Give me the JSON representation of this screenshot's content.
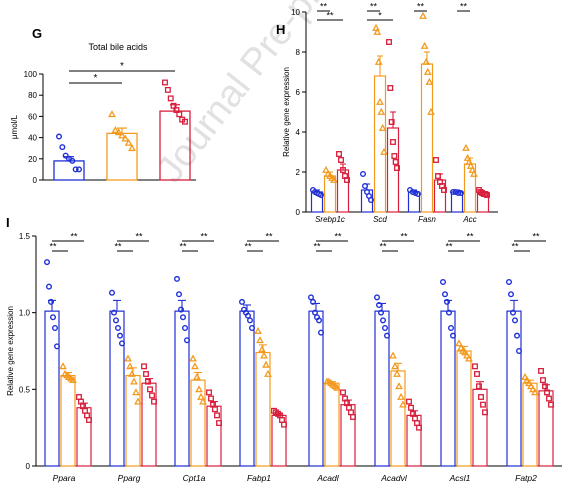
{
  "watermark": "Journal Pre-proof",
  "colors": {
    "control": "#1f2fd6",
    "group2": "#f39a1e",
    "group3": "#d81e3c"
  },
  "chart_data": [
    {
      "id": "G",
      "panel_label": "G",
      "type": "bar",
      "title": "Total bile acids",
      "ylabel": "μmol/L",
      "ylim": [
        0,
        100
      ],
      "yticks": [
        0,
        20,
        40,
        60,
        80,
        100
      ],
      "series": [
        {
          "mean": 18,
          "err": 4,
          "points": [
            41,
            31,
            23,
            20,
            18,
            10,
            10
          ]
        },
        {
          "mean": 44,
          "err": 5,
          "points": [
            62,
            47,
            45,
            42,
            39,
            35,
            30
          ]
        },
        {
          "mean": 65,
          "err": 6,
          "points": [
            92,
            85,
            77,
            70,
            66,
            62,
            57,
            55
          ]
        }
      ],
      "significance": [
        {
          "from": 0,
          "to": 1,
          "label": "*"
        },
        {
          "from": 0,
          "to": 2,
          "label": "*"
        }
      ]
    },
    {
      "id": "H",
      "panel_label": "H",
      "type": "bar",
      "ylabel": "Relative gene expression",
      "ylim": [
        0,
        10
      ],
      "yticks": [
        0,
        2,
        4,
        6,
        8,
        10
      ],
      "categories": [
        "Srebp1c",
        "Scd",
        "Fasn",
        "Acc"
      ],
      "groups": [
        {
          "means": [
            1.0,
            1.1,
            1.0,
            1.0
          ],
          "errs": [
            0.1,
            0.3,
            0.1,
            0.1
          ],
          "points": [
            [
              1.1,
              1.0,
              0.95,
              0.9,
              0.85
            ],
            [
              1.9,
              1.3,
              1.0,
              0.8,
              0.6
            ],
            [
              1.1,
              1.0,
              0.95,
              0.9
            ],
            [
              1.0,
              1.0,
              0.95,
              0.95
            ]
          ]
        },
        {
          "means": [
            1.8,
            6.8,
            7.4,
            2.4
          ],
          "errs": [
            0.2,
            1.0,
            0.6,
            0.3
          ],
          "points": [
            [
              2.1,
              1.9,
              1.8,
              1.7,
              1.6
            ],
            [
              9.2,
              9.0,
              7.5,
              5.5,
              5.0,
              4.2,
              3.0
            ],
            [
              9.8,
              8.3,
              7.5,
              7.0,
              6.5,
              5.0
            ],
            [
              3.2,
              2.7,
              2.5,
              2.3,
              2.1,
              1.9
            ]
          ]
        },
        {
          "means": [
            2.1,
            4.2,
            1.6,
            0.95
          ],
          "errs": [
            0.3,
            0.8,
            0.3,
            0.05
          ],
          "points": [
            [
              2.9,
              2.6,
              2.1,
              1.8,
              1.6
            ],
            [
              8.5,
              6.2,
              4.5,
              3.5,
              2.8,
              2.5,
              2.2
            ],
            [
              2.6,
              1.8,
              1.5,
              1.3,
              1.1
            ],
            [
              1.1,
              1.0,
              0.95,
              0.9,
              0.9,
              0.85
            ]
          ]
        }
      ],
      "significance": [
        {
          "cat": 0,
          "from": 0,
          "to": 1,
          "label": "**"
        },
        {
          "cat": 0,
          "from": 0,
          "to": 2,
          "label": "**"
        },
        {
          "cat": 1,
          "from": 0,
          "to": 1,
          "label": "**"
        },
        {
          "cat": 1,
          "from": 0,
          "to": 2,
          "label": "*"
        },
        {
          "cat": 2,
          "from": 0,
          "to": 1,
          "label": "**"
        },
        {
          "cat": 3,
          "from": 0,
          "to": 1,
          "label": "**"
        }
      ]
    },
    {
      "id": "I",
      "panel_label": "I",
      "type": "bar",
      "ylabel": "Relative gene expression",
      "ylim": [
        0,
        1.5
      ],
      "yticks": [
        0,
        0.5,
        1.0,
        1.5
      ],
      "ytick_labels": [
        "0",
        "0.5",
        "1.0",
        "1.5"
      ],
      "categories": [
        "Ppara",
        "Pparg",
        "Cpt1a",
        "Fabp1",
        "Acadl",
        "Acadvl",
        "Acsl1",
        "Fatp2"
      ],
      "groups": [
        {
          "means": [
            1.01,
            1.01,
            1.01,
            1.01,
            1.01,
            1.01,
            1.01,
            1.01
          ],
          "errs": [
            0.07,
            0.07,
            0.07,
            0.04,
            0.05,
            0.05,
            0.07,
            0.07
          ],
          "points": [
            [
              1.33,
              1.17,
              1.07,
              0.97,
              0.9,
              0.78
            ],
            [
              1.13,
              1.0,
              0.95,
              0.9,
              0.85,
              0.8
            ],
            [
              1.22,
              1.12,
              1.02,
              0.97,
              0.9,
              0.82
            ],
            [
              1.07,
              1.02,
              1.0,
              0.98,
              0.95,
              0.9
            ],
            [
              1.1,
              1.07,
              1.0,
              0.97,
              0.95,
              0.87
            ],
            [
              1.1,
              1.05,
              1.0,
              0.95,
              0.9,
              0.85
            ],
            [
              1.2,
              1.12,
              1.07,
              1.0,
              0.9,
              0.85
            ],
            [
              1.2,
              1.12,
              1.0,
              0.95,
              0.85,
              0.75
            ]
          ]
        },
        {
          "means": [
            0.59,
            0.59,
            0.56,
            0.74,
            0.54,
            0.62,
            0.75,
            0.54
          ],
          "errs": [
            0.02,
            0.05,
            0.05,
            0.05,
            0.01,
            0.05,
            0.03,
            0.02
          ],
          "points": [
            [
              0.65,
              0.6,
              0.59,
              0.58,
              0.57,
              0.56
            ],
            [
              0.7,
              0.65,
              0.6,
              0.55,
              0.48,
              0.42
            ],
            [
              0.7,
              0.65,
              0.58,
              0.5,
              0.45,
              0.42
            ],
            [
              0.88,
              0.82,
              0.76,
              0.72,
              0.66,
              0.6
            ],
            [
              0.55,
              0.55,
              0.54,
              0.53,
              0.52,
              0.51
            ],
            [
              0.72,
              0.65,
              0.6,
              0.52,
              0.45,
              0.4
            ],
            [
              0.8,
              0.77,
              0.75,
              0.74,
              0.72,
              0.7
            ],
            [
              0.58,
              0.56,
              0.54,
              0.52,
              0.5,
              0.48
            ]
          ]
        },
        {
          "means": [
            0.38,
            0.54,
            0.39,
            0.33,
            0.4,
            0.33,
            0.5,
            0.49
          ],
          "errs": [
            0.03,
            0.03,
            0.03,
            0.01,
            0.03,
            0.03,
            0.05,
            0.04
          ],
          "points": [
            [
              0.45,
              0.42,
              0.39,
              0.36,
              0.33,
              0.3
            ],
            [
              0.65,
              0.6,
              0.55,
              0.5,
              0.46,
              0.42
            ],
            [
              0.48,
              0.44,
              0.4,
              0.37,
              0.33,
              0.28
            ],
            [
              0.36,
              0.35,
              0.34,
              0.33,
              0.3,
              0.27
            ],
            [
              0.48,
              0.44,
              0.41,
              0.38,
              0.35,
              0.32
            ],
            [
              0.42,
              0.38,
              0.34,
              0.31,
              0.28,
              0.25
            ],
            [
              0.65,
              0.6,
              0.52,
              0.45,
              0.4,
              0.35
            ],
            [
              0.62,
              0.56,
              0.52,
              0.48,
              0.44,
              0.4
            ]
          ]
        }
      ],
      "significance_all": [
        {
          "from": 0,
          "to": 1,
          "label": "**"
        },
        {
          "from": 0,
          "to": 2,
          "label": "**"
        }
      ]
    }
  ]
}
